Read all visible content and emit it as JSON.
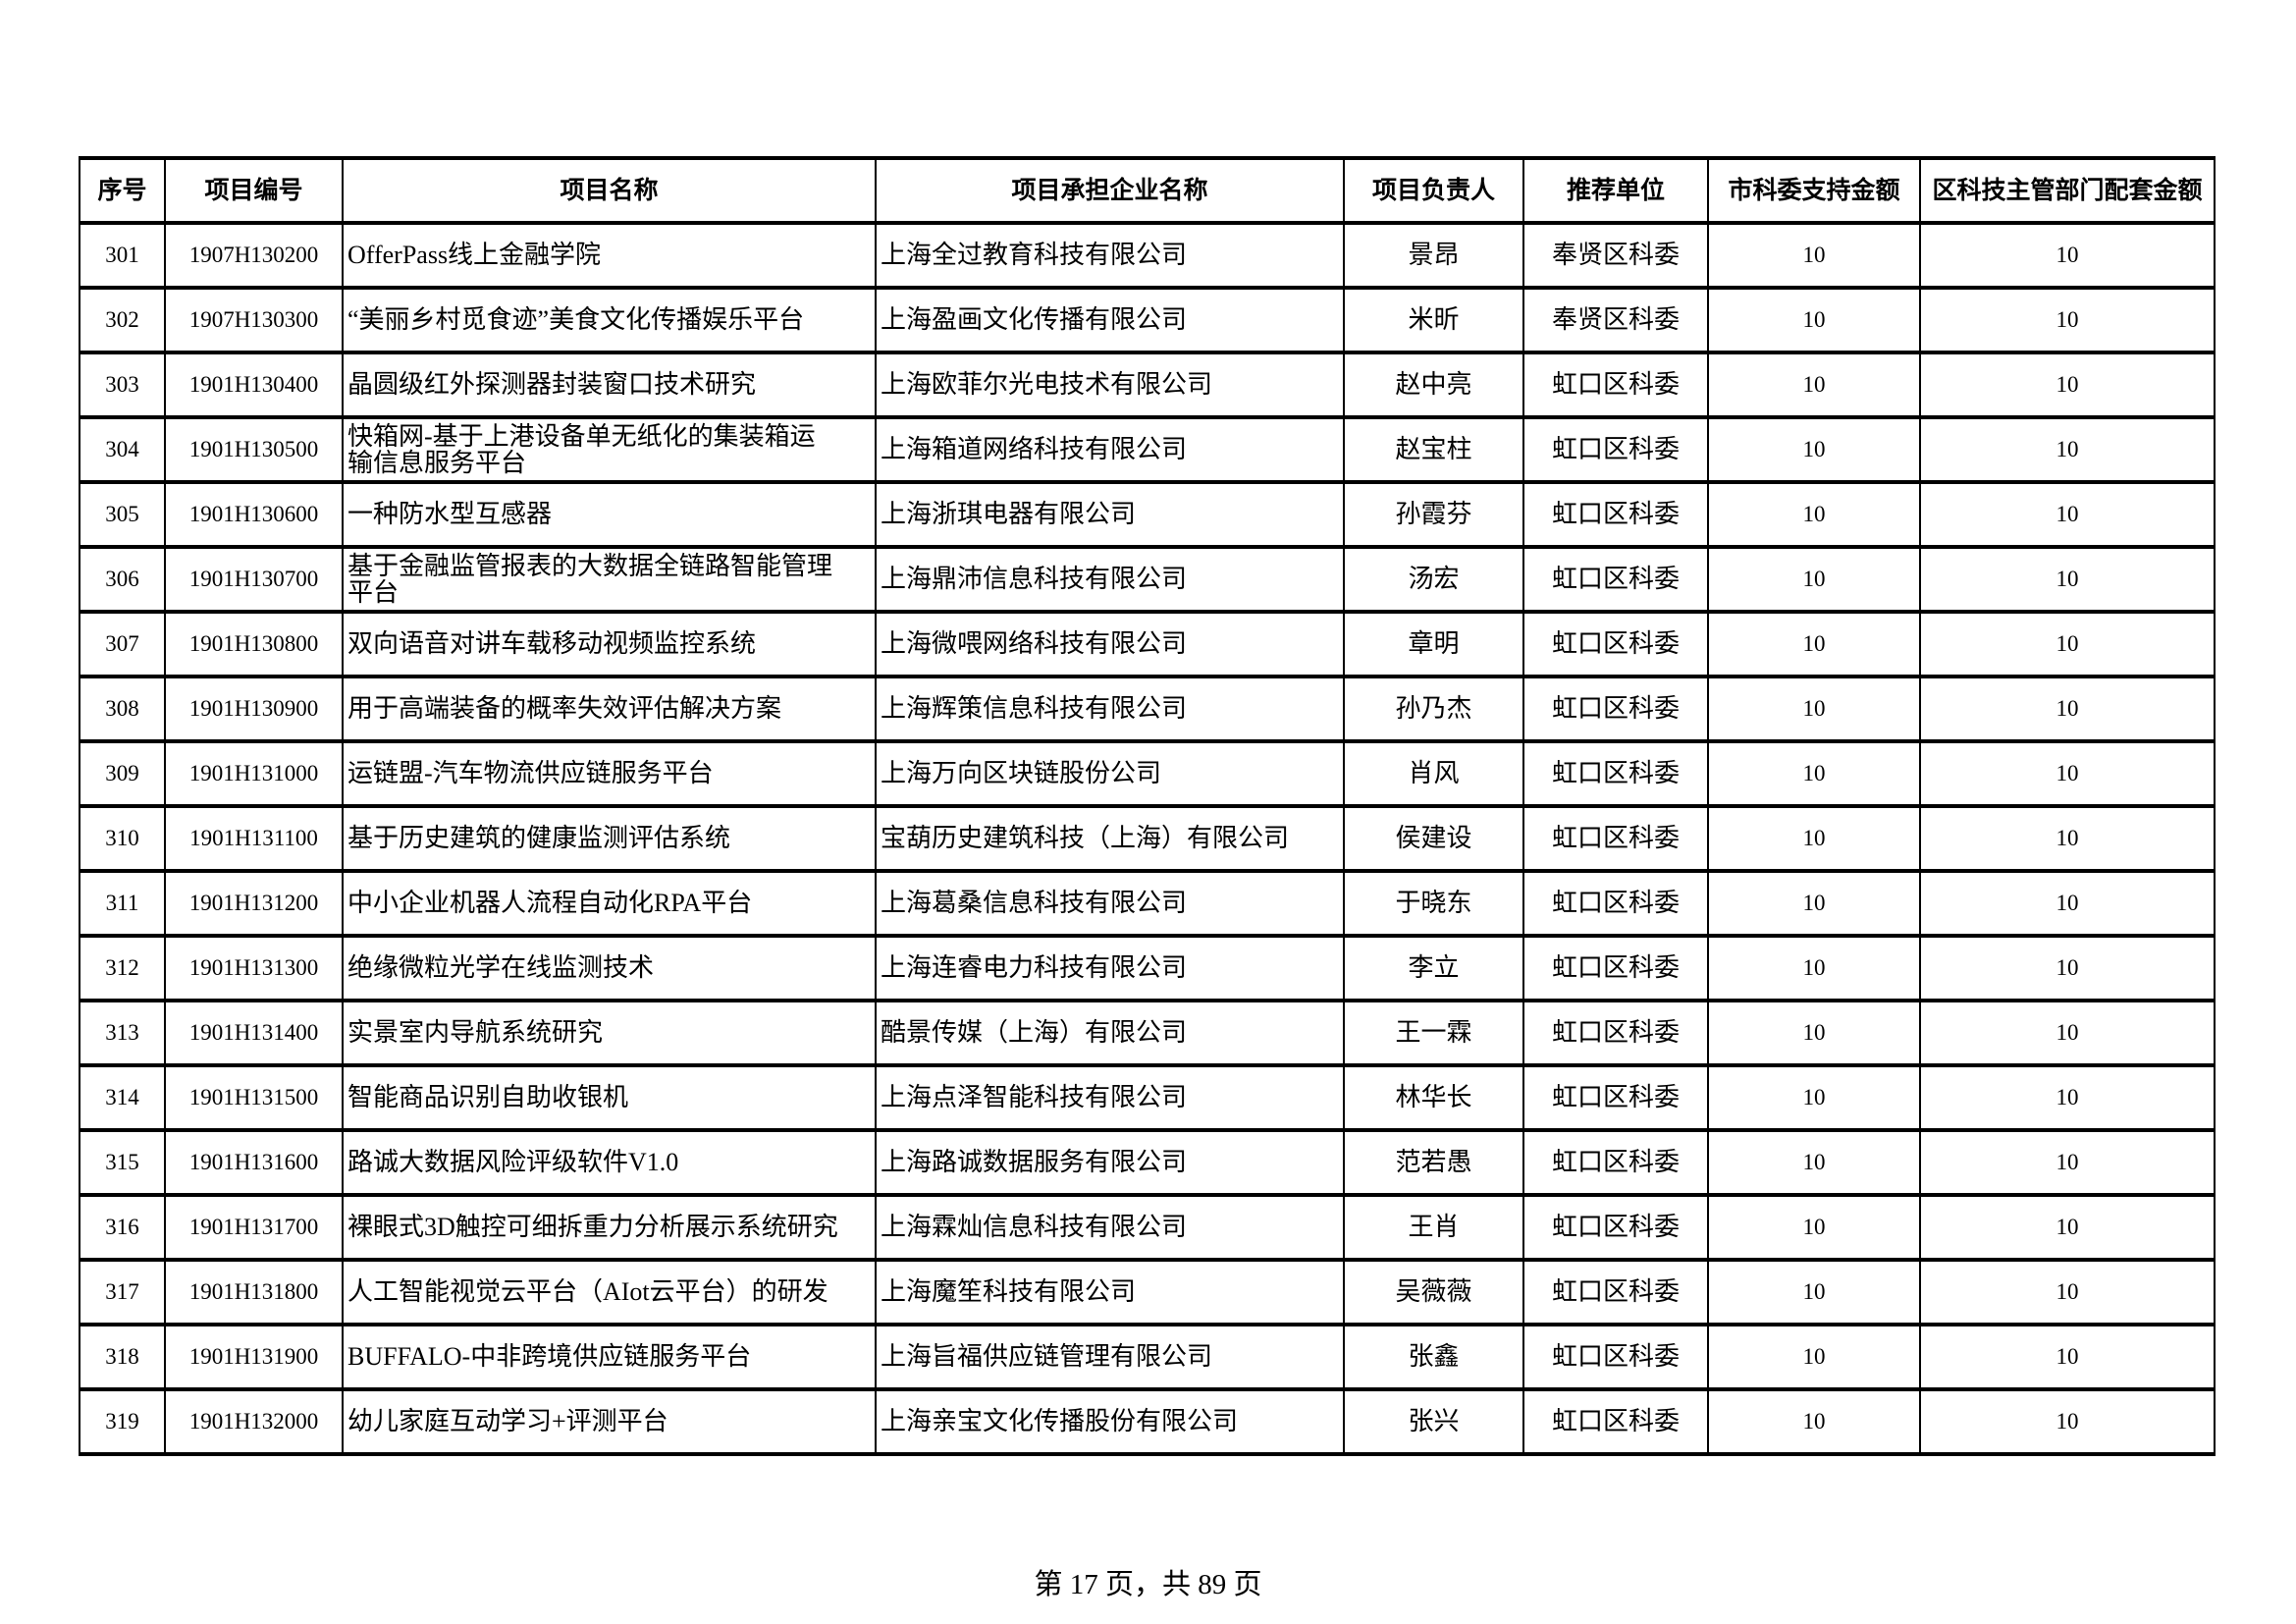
{
  "table": {
    "headers": [
      "序号",
      "项目编号",
      "项目名称",
      "项目承担企业名称",
      "项目负责人",
      "推荐单位",
      "市科委支持金额",
      "区科技主管部门配套金额"
    ],
    "rows": [
      [
        "301",
        "1907H130200",
        "OfferPass线上金融学院",
        "上海全过教育科技有限公司",
        "景昂",
        "奉贤区科委",
        "10",
        "10"
      ],
      [
        "302",
        "1907H130300",
        "“美丽乡村觅食迹”美食文化传播娱乐平台",
        "上海盈画文化传播有限公司",
        "米昕",
        "奉贤区科委",
        "10",
        "10"
      ],
      [
        "303",
        "1901H130400",
        "晶圆级红外探测器封装窗口技术研究",
        "上海欧菲尔光电技术有限公司",
        "赵中亮",
        "虹口区科委",
        "10",
        "10"
      ],
      [
        "304",
        "1901H130500",
        "快箱网-基于上港设备单无纸化的集装箱运\n输信息服务平台",
        "上海箱道网络科技有限公司",
        "赵宝柱",
        "虹口区科委",
        "10",
        "10"
      ],
      [
        "305",
        "1901H130600",
        "一种防水型互感器",
        "上海浙琪电器有限公司",
        "孙霞芬",
        "虹口区科委",
        "10",
        "10"
      ],
      [
        "306",
        "1901H130700",
        "基于金融监管报表的大数据全链路智能管理\n平台",
        "上海鼎沛信息科技有限公司",
        "汤宏",
        "虹口区科委",
        "10",
        "10"
      ],
      [
        "307",
        "1901H130800",
        "双向语音对讲车载移动视频监控系统",
        "上海微喂网络科技有限公司",
        "章明",
        "虹口区科委",
        "10",
        "10"
      ],
      [
        "308",
        "1901H130900",
        "用于高端装备的概率失效评估解决方案",
        "上海辉策信息科技有限公司",
        "孙乃杰",
        "虹口区科委",
        "10",
        "10"
      ],
      [
        "309",
        "1901H131000",
        "运链盟-汽车物流供应链服务平台",
        "上海万向区块链股份公司",
        "肖风",
        "虹口区科委",
        "10",
        "10"
      ],
      [
        "310",
        "1901H131100",
        "基于历史建筑的健康监测评估系统",
        "宝葫历史建筑科技（上海）有限公司",
        "侯建设",
        "虹口区科委",
        "10",
        "10"
      ],
      [
        "311",
        "1901H131200",
        "中小企业机器人流程自动化RPA平台",
        "上海葛桑信息科技有限公司",
        "于晓东",
        "虹口区科委",
        "10",
        "10"
      ],
      [
        "312",
        "1901H131300",
        "绝缘微粒光学在线监测技术",
        "上海连睿电力科技有限公司",
        "李立",
        "虹口区科委",
        "10",
        "10"
      ],
      [
        "313",
        "1901H131400",
        "实景室内导航系统研究",
        "酷景传媒（上海）有限公司",
        "王一霖",
        "虹口区科委",
        "10",
        "10"
      ],
      [
        "314",
        "1901H131500",
        "智能商品识别自助收银机",
        "上海点泽智能科技有限公司",
        "林华长",
        "虹口区科委",
        "10",
        "10"
      ],
      [
        "315",
        "1901H131600",
        "路诚大数据风险评级软件V1.0",
        "上海路诚数据服务有限公司",
        "范若愚",
        "虹口区科委",
        "10",
        "10"
      ],
      [
        "316",
        "1901H131700",
        "裸眼式3D触控可细拆重力分析展示系统研究",
        "上海霖灿信息科技有限公司",
        "王肖",
        "虹口区科委",
        "10",
        "10"
      ],
      [
        "317",
        "1901H131800",
        "人工智能视觉云平台（AIot云平台）的研发",
        "上海魔笙科技有限公司",
        "吴薇薇",
        "虹口区科委",
        "10",
        "10"
      ],
      [
        "318",
        "1901H131900",
        "BUFFALO-中非跨境供应链服务平台",
        "上海旨福供应链管理有限公司",
        "张鑫",
        "虹口区科委",
        "10",
        "10"
      ],
      [
        "319",
        "1901H132000",
        "幼儿家庭互动学习+评测平台",
        "上海亲宝文化传播股份有限公司",
        "张兴",
        "虹口区科委",
        "10",
        "10"
      ]
    ]
  },
  "footer": {
    "page_info": "第 17 页，共 89 页"
  }
}
